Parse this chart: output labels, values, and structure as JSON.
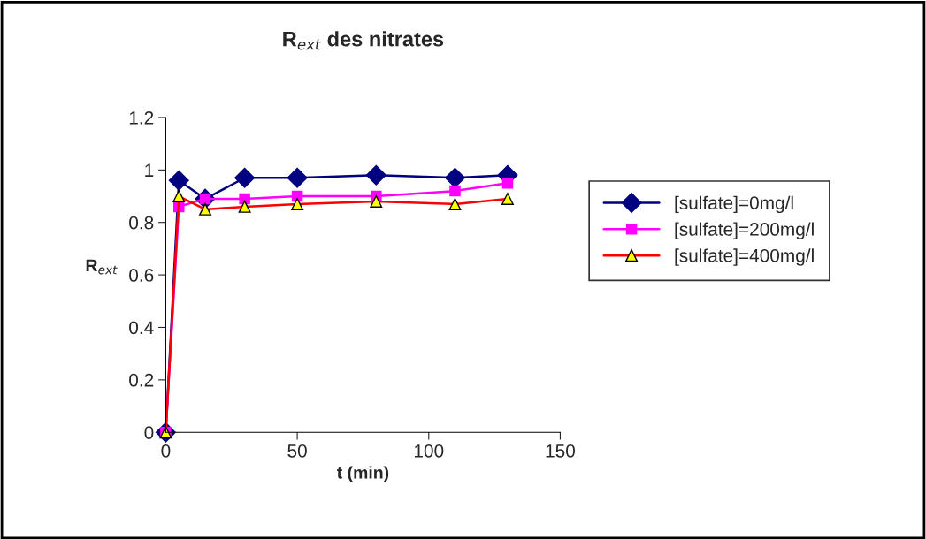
{
  "chart_data": {
    "type": "line",
    "title": "R$_{ext}$ des nitrates",
    "xlabel": "t (min)",
    "ylabel": "R$_{ext}$",
    "x": [
      0,
      5,
      15,
      30,
      50,
      80,
      110,
      130
    ],
    "series": [
      {
        "name": "[sulfate]=0mg/l",
        "color": "#000080",
        "marker": "diamond",
        "values": [
          0,
          0.96,
          0.89,
          0.97,
          0.97,
          0.98,
          0.97,
          0.98
        ]
      },
      {
        "name": "[sulfate]=200mg/l",
        "color": "#ff00ff",
        "marker": "square",
        "values": [
          0,
          0.86,
          0.89,
          0.89,
          0.9,
          0.9,
          0.92,
          0.95
        ]
      },
      {
        "name": "[sulfate]=400mg/l",
        "color": "#ff0000",
        "marker": "triangle",
        "values": [
          0,
          0.9,
          0.85,
          0.86,
          0.87,
          0.88,
          0.87,
          0.89
        ]
      }
    ],
    "xlim": [
      0,
      150
    ],
    "xticks": [
      0,
      50,
      100,
      150
    ],
    "ylim": [
      0,
      1.2
    ],
    "yticks": [
      0,
      0.2,
      0.4,
      0.6,
      0.8,
      1,
      1.2
    ],
    "grid": false,
    "legend": "right",
    "line_style": "solid"
  }
}
